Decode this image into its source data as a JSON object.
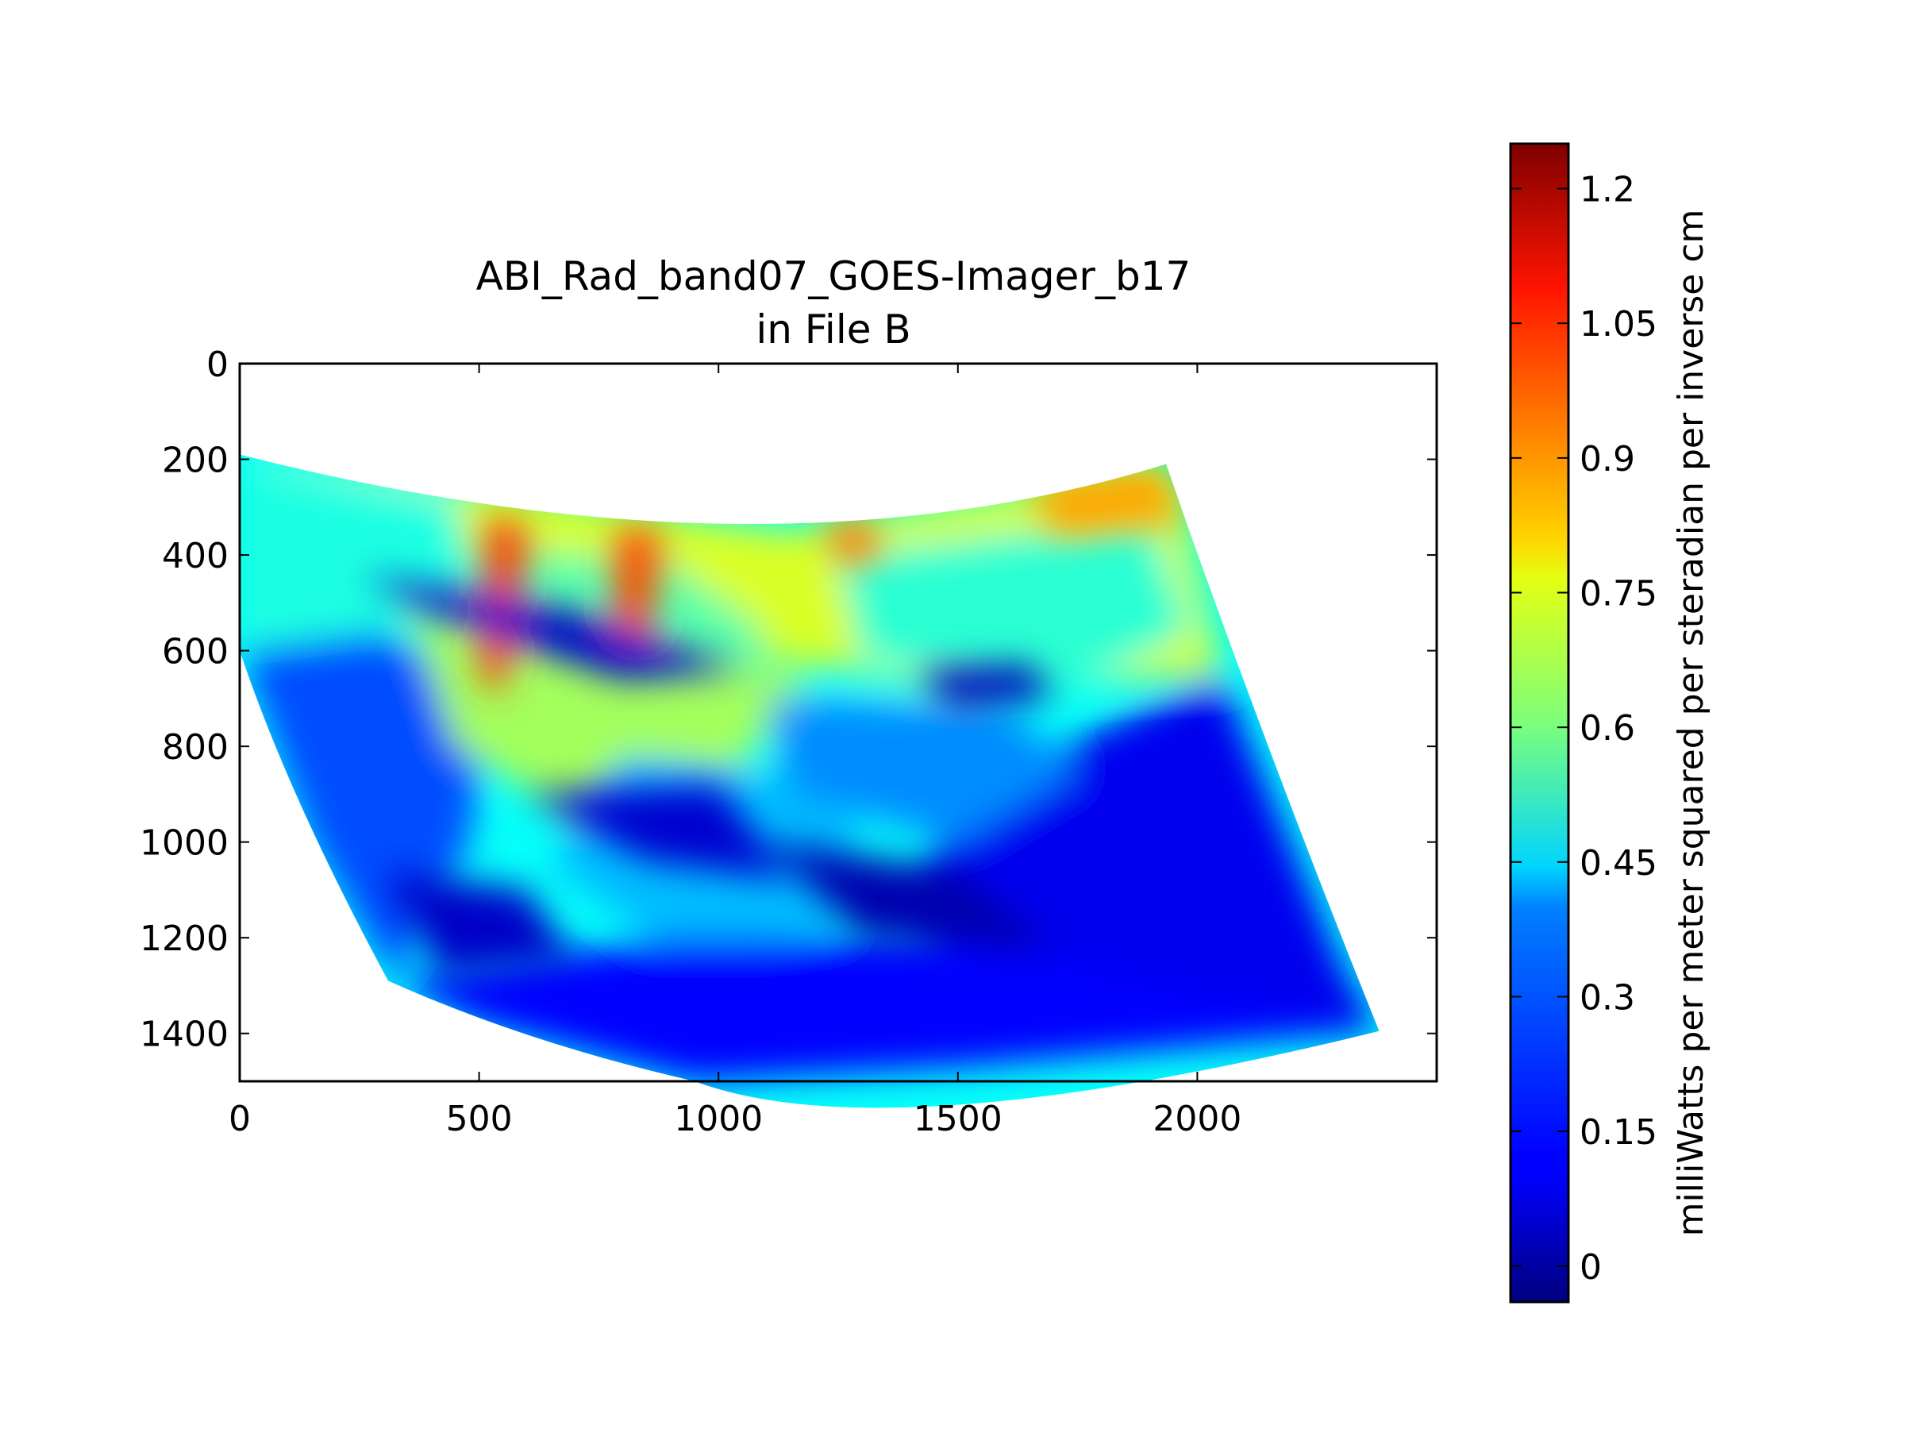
{
  "chart_data": {
    "type": "heatmap",
    "title": "ABI_Rad_band07_GOES-Imager_b17",
    "subtitle": "in File B",
    "xlabel": "",
    "ylabel": "",
    "xlim": [
      0,
      2500
    ],
    "ylim": [
      1500,
      0
    ],
    "x_ticks": [
      0,
      500,
      1000,
      1500,
      2000
    ],
    "y_ticks": [
      0,
      200,
      400,
      600,
      800,
      1000,
      1200,
      1400
    ],
    "y_inverted": true,
    "colormap": "jet",
    "colorbar": {
      "label": "milliWatts per meter squared per steradian per inverse cm",
      "vmin": -0.04,
      "vmax": 1.25,
      "ticks": [
        0,
        0.15,
        0.3,
        0.45,
        0.6,
        0.75,
        0.9,
        1.05,
        1.2
      ],
      "tick_labels": [
        "0",
        "0.15",
        "0.3",
        "0.45",
        "0.6",
        "0.75",
        "0.9",
        "1.05",
        "1.2"
      ]
    },
    "data_footprint": {
      "top_left": [
        0,
        190
      ],
      "top_mid": [
        1150,
        350
      ],
      "top_right": [
        1935,
        210
      ],
      "right_shoulder": [
        1980,
        340
      ],
      "bottom_right": [
        2380,
        1395
      ],
      "bottom_mid": [
        950,
        1500
      ],
      "bottom_left": [
        310,
        1290
      ],
      "left_mid": [
        0,
        600
      ]
    },
    "regions": [
      {
        "polygon": [
          [
            0,
            190
          ],
          [
            1150,
            350
          ],
          [
            1935,
            210
          ],
          [
            1980,
            340
          ],
          [
            2050,
            650
          ],
          [
            1500,
            680
          ],
          [
            800,
            560
          ],
          [
            300,
            480
          ],
          [
            0,
            420
          ]
        ],
        "value": 0.72
      },
      {
        "polygon": [
          [
            0,
            190
          ],
          [
            450,
            280
          ],
          [
            500,
            500
          ],
          [
            250,
            600
          ],
          [
            0,
            600
          ]
        ],
        "value": 0.48
      },
      {
        "polygon": [
          [
            0,
            600
          ],
          [
            300,
            560
          ],
          [
            520,
            700
          ],
          [
            480,
            1000
          ],
          [
            320,
            1290
          ],
          [
            150,
            1000
          ]
        ],
        "value": 0.22
      },
      {
        "polygon": [
          [
            500,
            380
          ],
          [
            900,
            420
          ],
          [
            1100,
            560
          ],
          [
            950,
            760
          ],
          [
            600,
            700
          ],
          [
            450,
            520
          ]
        ],
        "value": 0.55
      },
      {
        "polygon": [
          [
            1250,
            400
          ],
          [
            1900,
            320
          ],
          [
            1990,
            560
          ],
          [
            1700,
            700
          ],
          [
            1300,
            620
          ]
        ],
        "value": 0.5
      },
      {
        "polygon": [
          [
            350,
            500
          ],
          [
            850,
            620
          ],
          [
            1200,
            640
          ],
          [
            1000,
            900
          ],
          [
            700,
            950
          ],
          [
            450,
            800
          ]
        ],
        "value": 0.65
      },
      {
        "polygon": [
          [
            800,
            820
          ],
          [
            1300,
            880
          ],
          [
            1250,
            1180
          ],
          [
            900,
            1230
          ],
          [
            650,
            1050
          ]
        ],
        "value": 0.36
      },
      {
        "polygon": [
          [
            1500,
            900
          ],
          [
            2050,
            650
          ],
          [
            2300,
            1250
          ],
          [
            2380,
            1395
          ],
          [
            1800,
            1380
          ],
          [
            1400,
            1150
          ]
        ],
        "value": 0.1
      },
      {
        "polygon": [
          [
            320,
            1290
          ],
          [
            900,
            1200
          ],
          [
            1500,
            1200
          ],
          [
            2380,
            1395
          ],
          [
            1500,
            1470
          ],
          [
            950,
            1500
          ],
          [
            500,
            1380
          ]
        ],
        "value": 0.12
      },
      {
        "polygon": [
          [
            1100,
            700
          ],
          [
            1600,
            720
          ],
          [
            1750,
            850
          ],
          [
            1500,
            1000
          ],
          [
            1150,
            900
          ]
        ],
        "value": 0.3
      }
    ],
    "features": [
      {
        "polygon": [
          [
            520,
            320
          ],
          [
            600,
            340
          ],
          [
            580,
            560
          ],
          [
            540,
            700
          ],
          [
            500,
            640
          ]
        ],
        "value": 1.02
      },
      {
        "polygon": [
          [
            790,
            340
          ],
          [
            880,
            350
          ],
          [
            860,
            560
          ],
          [
            820,
            640
          ],
          [
            780,
            520
          ]
        ],
        "value": 1.0
      },
      {
        "polygon": [
          [
            1230,
            330
          ],
          [
            1330,
            335
          ],
          [
            1320,
            420
          ],
          [
            1240,
            400
          ]
        ],
        "value": 0.95
      },
      {
        "polygon": [
          [
            1650,
            250
          ],
          [
            1930,
            215
          ],
          [
            1970,
            330
          ],
          [
            1700,
            360
          ]
        ],
        "value": 0.88
      },
      {
        "polygon": [
          [
            250,
            440
          ],
          [
            700,
            520
          ],
          [
            1050,
            640
          ],
          [
            800,
            660
          ],
          [
            400,
            520
          ]
        ],
        "value": 0.05
      },
      {
        "polygon": [
          [
            1420,
            640
          ],
          [
            1650,
            630
          ],
          [
            1700,
            700
          ],
          [
            1480,
            720
          ]
        ],
        "value": 0.03
      },
      {
        "polygon": [
          [
            600,
            900
          ],
          [
            1000,
            880
          ],
          [
            1150,
            1080
          ],
          [
            850,
            1040
          ]
        ],
        "value": 0.06
      },
      {
        "polygon": [
          [
            1100,
            1000
          ],
          [
            1500,
            1060
          ],
          [
            1700,
            1220
          ],
          [
            1300,
            1200
          ]
        ],
        "value": 0.02
      },
      {
        "polygon": [
          [
            300,
            1060
          ],
          [
            600,
            1100
          ],
          [
            700,
            1250
          ],
          [
            420,
            1280
          ]
        ],
        "value": 0.05
      }
    ]
  }
}
